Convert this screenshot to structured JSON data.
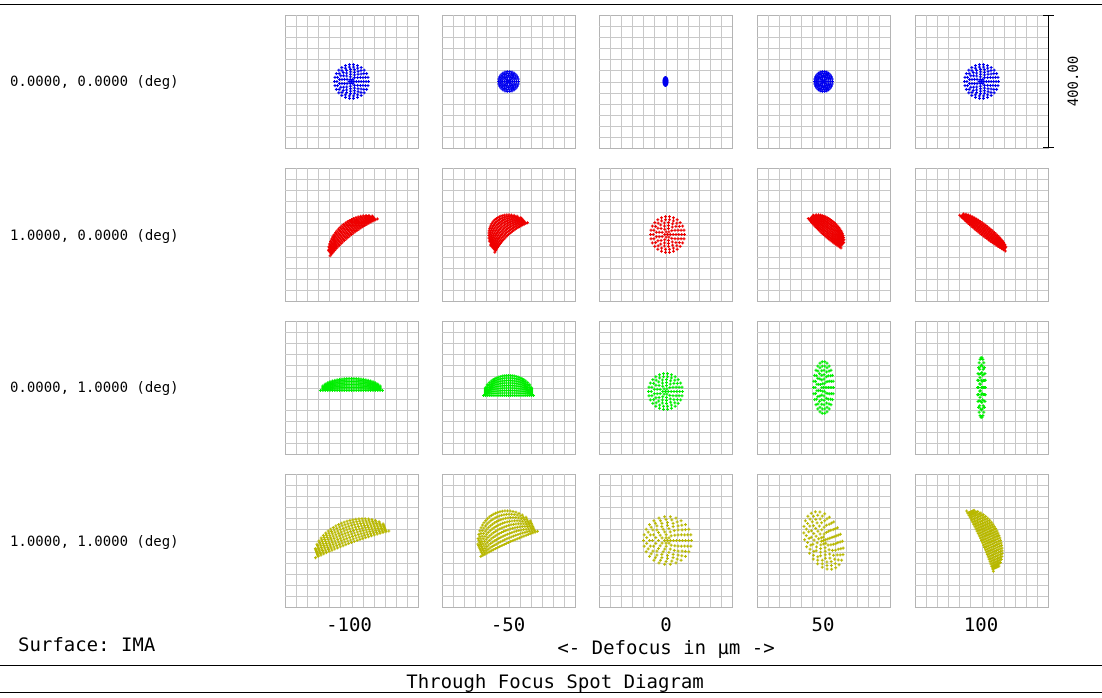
{
  "chart_data": {
    "type": "scatter",
    "title": "Through Focus Spot Diagram",
    "surface_label": "Surface: IMA",
    "xlabel": "<- Defocus in µm ->",
    "scale_bar_label": "400.00",
    "defocus": [
      "-100",
      "-50",
      "0",
      "50",
      "100"
    ],
    "fields": [
      {
        "label": "0.0000, 0.0000 (deg)",
        "color": "#0000ee"
      },
      {
        "label": "1.0000, 0.0000 (deg)",
        "color": "#ee0000"
      },
      {
        "label": "0.0000, 1.0000 (deg)",
        "color": "#00ee00"
      },
      {
        "label": "1.0000, 1.0000 (deg)",
        "color": "#b8b800"
      }
    ],
    "grid": true,
    "grid_divisions": 12,
    "scale_bar_microns": 400.0
  }
}
